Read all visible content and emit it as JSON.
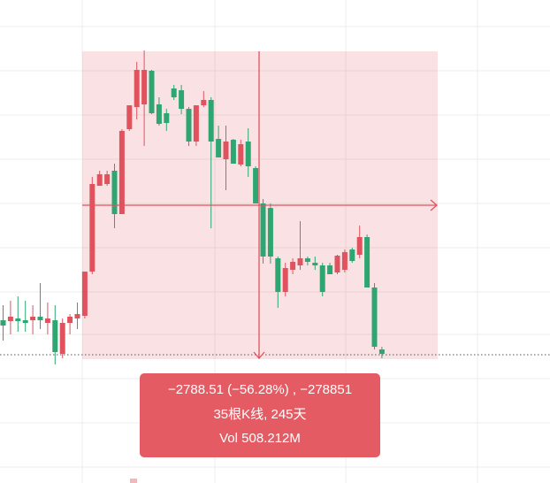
{
  "chart_data": {
    "type": "candlestick",
    "colors": {
      "up": "#e0535e",
      "down": "#2ea672"
    },
    "ylim": [
      -194,
      8760
    ],
    "open": [
      2823,
      2807,
      2856,
      2823,
      2823,
      2889,
      2774,
      2823,
      2200,
      2774,
      2856,
      2905,
      3725,
      5316,
      5349,
      5595,
      4791,
      6366,
      6775,
      6825,
      7448,
      6825,
      6661,
      7120,
      7087,
      6743,
      6136,
      6808,
      6907,
      6185,
      5808,
      6169,
      5710,
      6136,
      5644,
      4988,
      4905,
      3971,
      3348,
      3758,
      3840,
      3971,
      3889,
      3840,
      3840,
      3709,
      3758,
      4135,
      4036,
      4365,
      3430,
      2282
    ],
    "high": [
      3102,
      3184,
      3266,
      3184,
      3102,
      3512,
      3151,
      3102,
      2856,
      2938,
      3151,
      3725,
      5480,
      5595,
      5595,
      5726,
      6366,
      6808,
      7612,
      7825,
      7464,
      6956,
      6743,
      7186,
      7186,
      6775,
      6808,
      7071,
      6956,
      6431,
      6431,
      6185,
      6169,
      6382,
      5677,
      5070,
      4988,
      4004,
      3889,
      3971,
      4660,
      4004,
      4004,
      3889,
      3889,
      4036,
      4135,
      4168,
      4578,
      4414,
      3512,
      2331
    ],
    "low": [
      2446,
      2561,
      2610,
      2610,
      2561,
      2659,
      2561,
      2003,
      2118,
      2561,
      2659,
      2856,
      3676,
      5316,
      5316,
      4529,
      4791,
      6333,
      6546,
      6054,
      6644,
      6431,
      6333,
      6907,
      6644,
      6054,
      6054,
      6775,
      4529,
      5841,
      5234,
      5726,
      5677,
      5480,
      4988,
      3873,
      3873,
      3053,
      3266,
      3676,
      3758,
      3840,
      3758,
      3266,
      3676,
      3676,
      3709,
      3889,
      3971,
      3430,
      2282,
      2118
    ],
    "close": [
      2725,
      2889,
      2807,
      2774,
      2889,
      2823,
      2856,
      2233,
      2774,
      2889,
      2938,
      3725,
      5349,
      5529,
      5529,
      4791,
      6333,
      6808,
      7464,
      7464,
      6661,
      6464,
      6480,
      6956,
      6743,
      6136,
      6808,
      6907,
      6136,
      5841,
      6136,
      5726,
      6087,
      5677,
      4988,
      4004,
      4004,
      3348,
      3791,
      3906,
      3971,
      3906,
      3840,
      3348,
      3676,
      4020,
      4086,
      3922,
      4365,
      3430,
      2331,
      2200
    ],
    "measure": {
      "change": "−2788.51 (−56.28%) , −278851",
      "bars": "35根K线, 245天",
      "volume": "Vol 508.212M"
    }
  }
}
